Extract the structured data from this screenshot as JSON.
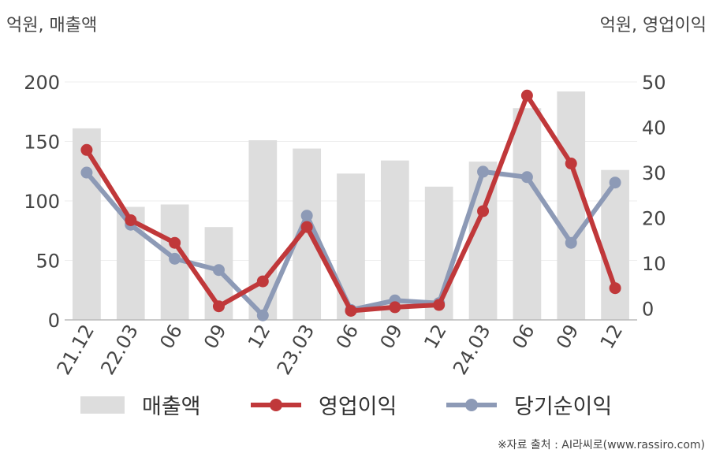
{
  "unit_left": "억원, 매출액",
  "unit_right": "억원, 영업이익",
  "source": "※자료 출처 : AI라씨로(www.rassiro.com)",
  "colors": {
    "revenue": "#dddddd",
    "operating": "#c0383a",
    "net": "#8d9ab6",
    "axis": "#bbbbbb",
    "grid": "#eeeeee"
  },
  "chart_data": {
    "type": "bar+line",
    "categories": [
      "21.12",
      "22.03",
      "06",
      "09",
      "12",
      "23.03",
      "06",
      "09",
      "12",
      "24.03",
      "06",
      "09",
      "12"
    ],
    "y_left": {
      "ticks": [
        0,
        50,
        100,
        150,
        200
      ],
      "range": [
        0,
        200
      ]
    },
    "y_right": {
      "ticks": [
        0,
        10,
        20,
        30,
        40,
        50
      ],
      "range": [
        -2.5,
        50
      ]
    },
    "series": [
      {
        "name": "매출액",
        "type": "bar",
        "axis": "left",
        "values": [
          161,
          95,
          97,
          78,
          151,
          144,
          123,
          134,
          112,
          133,
          178,
          192,
          126
        ]
      },
      {
        "name": "영업이익",
        "type": "line",
        "axis": "right",
        "values": [
          35,
          19.5,
          14.5,
          0.5,
          6,
          18,
          -0.5,
          0.3,
          0.8,
          21.5,
          47,
          32,
          4.5
        ]
      },
      {
        "name": "당기순이익",
        "type": "line",
        "axis": "right",
        "values": [
          30,
          18.5,
          11,
          8.5,
          -1.5,
          20.5,
          -0.3,
          1.8,
          1.2,
          30.2,
          29,
          14.5,
          27.8
        ]
      }
    ]
  }
}
